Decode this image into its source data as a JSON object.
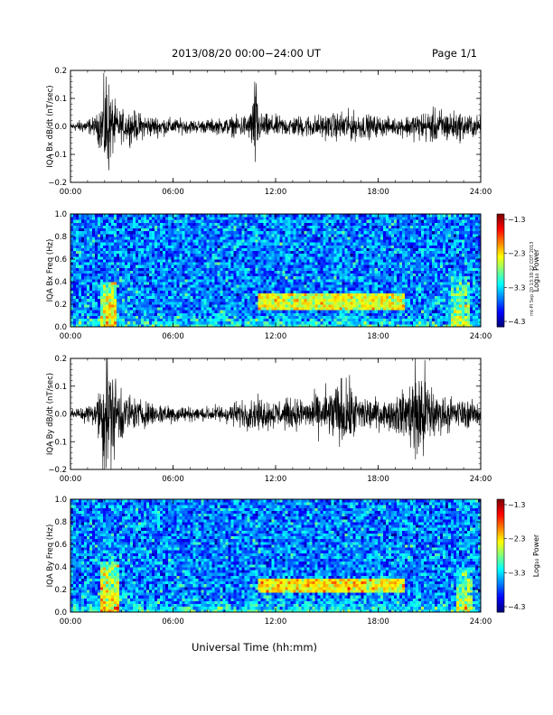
{
  "header": {
    "title": "2013/08/20  00:00−24:00 UT",
    "page": "Page 1/1"
  },
  "footer": {
    "xaxis_title": "Universal Time (hh:mm)"
  },
  "stamp": "mt-PI Sep 20 13:18:22 CDT 2013",
  "chart_data": [
    {
      "type": "line",
      "ylabel": "IQA Bx dB/dt (nT/sec)",
      "xlim": [
        0,
        24
      ],
      "ylim": [
        -0.2,
        0.2
      ],
      "x_ticks": [
        "00:00",
        "06:00",
        "12:00",
        "18:00",
        "24:00"
      ],
      "y_ticks": [
        "−0.2",
        "−0.1",
        "0.0",
        "0.1",
        "0.2"
      ],
      "color": "#000000",
      "amplitude_envelope": [
        {
          "t": 0.0,
          "a": 0.012
        },
        {
          "t": 1.5,
          "a": 0.03
        },
        {
          "t": 1.85,
          "a": 0.09
        },
        {
          "t": 2.1,
          "a": 0.19
        },
        {
          "t": 2.4,
          "a": 0.1
        },
        {
          "t": 2.8,
          "a": 0.05
        },
        {
          "t": 3.5,
          "a": 0.05
        },
        {
          "t": 4.5,
          "a": 0.035
        },
        {
          "t": 6.0,
          "a": 0.025
        },
        {
          "t": 7.5,
          "a": 0.02
        },
        {
          "t": 9.0,
          "a": 0.025
        },
        {
          "t": 10.5,
          "a": 0.04
        },
        {
          "t": 10.8,
          "a": 0.16
        },
        {
          "t": 11.1,
          "a": 0.04
        },
        {
          "t": 12.5,
          "a": 0.03
        },
        {
          "t": 14.0,
          "a": 0.035
        },
        {
          "t": 15.5,
          "a": 0.04
        },
        {
          "t": 16.0,
          "a": 0.05
        },
        {
          "t": 17.5,
          "a": 0.035
        },
        {
          "t": 19.0,
          "a": 0.025
        },
        {
          "t": 20.0,
          "a": 0.04
        },
        {
          "t": 21.5,
          "a": 0.055
        },
        {
          "t": 22.7,
          "a": 0.045
        },
        {
          "t": 24.0,
          "a": 0.03
        }
      ]
    },
    {
      "type": "heatmap",
      "ylabel": "IQA Bx Freq (Hz)",
      "xlim": [
        0,
        24
      ],
      "ylim": [
        0,
        1.0
      ],
      "x_ticks": [
        "00:00",
        "06:00",
        "12:00",
        "18:00",
        "24:00"
      ],
      "y_ticks": [
        "0.0",
        "0.2",
        "0.4",
        "0.6",
        "0.8",
        "1.0"
      ],
      "colorbar": {
        "label": "Log₁₀ Power",
        "ticks": [
          "−1.3",
          "−2.3",
          "−3.3",
          "−4.3"
        ],
        "range": [
          -4.3,
          -1.3
        ]
      },
      "features": [
        {
          "kind": "band",
          "t_start": 11.0,
          "t_end": 19.5,
          "freq_low": 0.15,
          "freq_high": 0.3,
          "log_power": -2.5
        },
        {
          "kind": "burst",
          "t_center": 2.2,
          "freq_max": 0.4,
          "log_power": -2.3
        },
        {
          "kind": "burst",
          "t_center": 22.8,
          "freq_max": 0.45,
          "log_power": -2.6
        }
      ]
    },
    {
      "type": "line",
      "ylabel": "IQA By dB/dt (nT/sec)",
      "xlim": [
        0,
        24
      ],
      "ylim": [
        -0.2,
        0.2
      ],
      "x_ticks": [
        "00:00",
        "06:00",
        "12:00",
        "18:00",
        "24:00"
      ],
      "y_ticks": [
        "−0.2",
        "−0.1",
        "0.0",
        "0.1",
        "0.2"
      ],
      "color": "#000000",
      "amplitude_envelope": [
        {
          "t": 0.0,
          "a": 0.012
        },
        {
          "t": 1.5,
          "a": 0.04
        },
        {
          "t": 2.0,
          "a": 0.2
        },
        {
          "t": 2.5,
          "a": 0.14
        },
        {
          "t": 3.0,
          "a": 0.09
        },
        {
          "t": 3.6,
          "a": 0.05
        },
        {
          "t": 5.0,
          "a": 0.035
        },
        {
          "t": 6.0,
          "a": 0.03
        },
        {
          "t": 7.5,
          "a": 0.02
        },
        {
          "t": 9.0,
          "a": 0.03
        },
        {
          "t": 10.8,
          "a": 0.05
        },
        {
          "t": 12.0,
          "a": 0.045
        },
        {
          "t": 14.0,
          "a": 0.05
        },
        {
          "t": 15.0,
          "a": 0.08
        },
        {
          "t": 16.0,
          "a": 0.11
        },
        {
          "t": 17.0,
          "a": 0.06
        },
        {
          "t": 18.5,
          "a": 0.04
        },
        {
          "t": 19.8,
          "a": 0.09
        },
        {
          "t": 20.3,
          "a": 0.2
        },
        {
          "t": 20.8,
          "a": 0.14
        },
        {
          "t": 21.5,
          "a": 0.06
        },
        {
          "t": 24.0,
          "a": 0.035
        }
      ]
    },
    {
      "type": "heatmap",
      "ylabel": "IQA By Freq (Hz)",
      "xlim": [
        0,
        24
      ],
      "ylim": [
        0,
        1.0
      ],
      "x_ticks": [
        "00:00",
        "06:00",
        "12:00",
        "18:00",
        "24:00"
      ],
      "y_ticks": [
        "0.0",
        "0.2",
        "0.4",
        "0.6",
        "0.8",
        "1.0"
      ],
      "colorbar": {
        "label": "Log₁₀ Power",
        "ticks": [
          "−1.3",
          "−2.3",
          "−3.3",
          "−4.3"
        ],
        "range": [
          -4.3,
          -1.3
        ]
      },
      "features": [
        {
          "kind": "band",
          "t_start": 11.0,
          "t_end": 19.5,
          "freq_low": 0.17,
          "freq_high": 0.3,
          "log_power": -2.4
        },
        {
          "kind": "burst",
          "t_center": 2.3,
          "freq_max": 0.45,
          "log_power": -2.2
        },
        {
          "kind": "burst",
          "t_center": 23.0,
          "freq_max": 0.4,
          "log_power": -2.6
        }
      ]
    }
  ]
}
